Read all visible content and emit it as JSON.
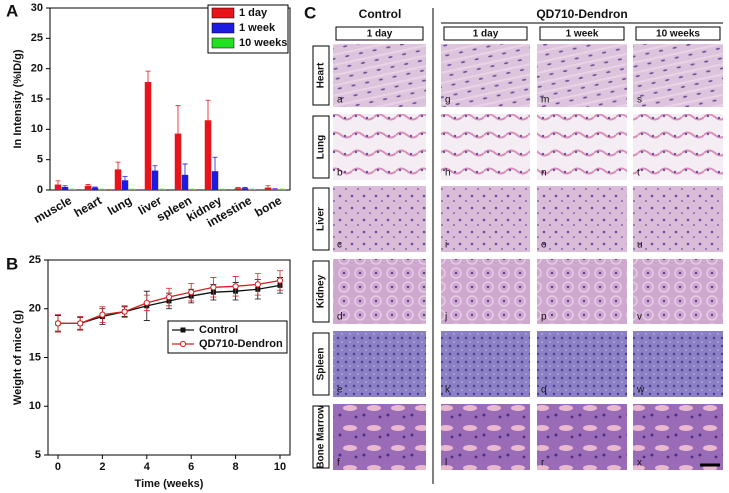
{
  "chart_data": [
    {
      "type": "bar",
      "panel_label": "A",
      "ylabel": "In Intensity (%ID/g)",
      "categories": [
        "muscle",
        "heart",
        "lung",
        "liver",
        "spleen",
        "kidney",
        "intestine",
        "bone"
      ],
      "series": [
        {
          "name": "1 day",
          "color": "#e8141c",
          "values": [
            0.9,
            0.7,
            3.4,
            17.8,
            9.3,
            11.5,
            0.3,
            0.4
          ],
          "errors": [
            0.6,
            0.2,
            1.2,
            1.8,
            4.6,
            3.3,
            0.1,
            0.3
          ]
        },
        {
          "name": "1 week",
          "color": "#1c1ce0",
          "values": [
            0.5,
            0.4,
            1.6,
            3.2,
            2.5,
            3.1,
            0.3,
            0.1
          ],
          "errors": [
            0.2,
            0.1,
            0.6,
            0.8,
            1.8,
            2.3,
            0.1,
            0.1
          ]
        },
        {
          "name": "10 weeks",
          "color": "#22e022",
          "values": [
            0.1,
            0.1,
            0.1,
            0.1,
            0.1,
            0.1,
            0.1,
            0.1
          ],
          "errors": [
            0.05,
            0.05,
            0.05,
            0.05,
            0.05,
            0.05,
            0.05,
            0.05
          ]
        }
      ],
      "ylim": [
        0,
        30
      ],
      "yticks": [
        0,
        5,
        10,
        15,
        20,
        25,
        30
      ],
      "legend": "upper right"
    },
    {
      "type": "line",
      "panel_label": "B",
      "xlabel": "Time (weeks)",
      "ylabel": "Weight of mice (g)",
      "x": [
        0,
        1,
        2,
        3,
        4,
        5,
        6,
        7,
        8,
        9,
        10
      ],
      "series": [
        {
          "name": "Control",
          "color": "#111111",
          "marker": "square",
          "values": [
            18.5,
            18.5,
            19.2,
            19.7,
            20.3,
            20.8,
            21.3,
            21.7,
            21.8,
            22.0,
            22.4
          ],
          "errors": [
            0.8,
            0.6,
            0.8,
            0.5,
            1.5,
            0.8,
            0.7,
            0.8,
            0.9,
            1.0,
            0.8
          ]
        },
        {
          "name": "QD710-Dendron",
          "color": "#d42020",
          "marker": "circle",
          "values": [
            18.5,
            18.5,
            19.4,
            19.7,
            20.6,
            21.2,
            21.7,
            22.2,
            22.3,
            22.5,
            22.9
          ],
          "errors": [
            0.9,
            0.7,
            0.8,
            0.6,
            0.8,
            0.9,
            0.9,
            1.0,
            1.0,
            1.1,
            1.0
          ]
        }
      ],
      "xlim": [
        -0.45,
        10.45
      ],
      "xticks": [
        0,
        2,
        4,
        6,
        8,
        10
      ],
      "ylim": [
        5,
        25
      ],
      "yticks": [
        5,
        10,
        15,
        20,
        25
      ],
      "legend": "center right"
    }
  ],
  "histology": {
    "panel_label": "C",
    "groups": [
      "Control",
      "QD710-Dendron"
    ],
    "columns": [
      "1 day",
      "1 day",
      "1 week",
      "10 weeks"
    ],
    "rows": [
      "Heart",
      "Lung",
      "Liver",
      "Kidney",
      "Spleen",
      "Bone Marrow"
    ],
    "letters": [
      [
        "a",
        "g",
        "m",
        "s"
      ],
      [
        "b",
        "h",
        "n",
        "t"
      ],
      [
        "c",
        "i",
        "o",
        "u"
      ],
      [
        "d",
        "j",
        "p",
        "v"
      ],
      [
        "e",
        "k",
        "q",
        "w"
      ],
      [
        "f",
        "l",
        "r",
        "x"
      ]
    ]
  }
}
